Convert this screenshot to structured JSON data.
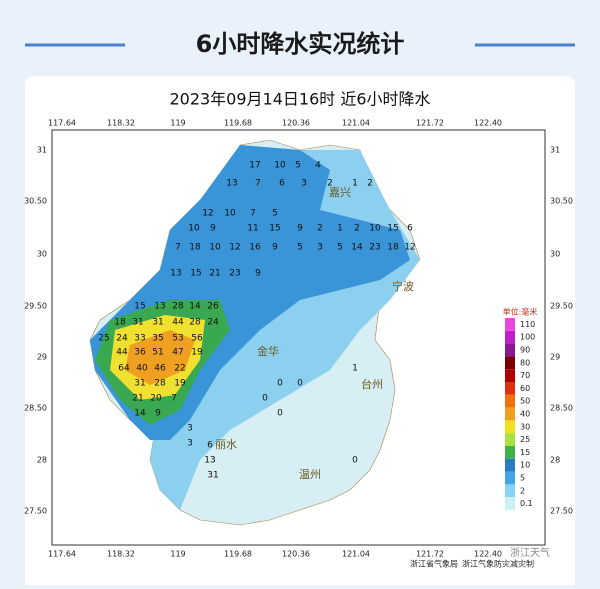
{
  "header": {
    "title": "6小时降水实况统计"
  },
  "map": {
    "title": "2023年09月14日16时  近6小时降水",
    "lon_ticks": [
      "117.64",
      "118.32",
      "119",
      "119.68",
      "120.36",
      "121.04",
      "121.72",
      "122.40"
    ],
    "lat_ticks": [
      "31",
      "30.50",
      "30",
      "29.50",
      "29",
      "28.50",
      "28",
      "27.50"
    ],
    "cities": [
      "嘉兴",
      "宁波",
      "金华",
      "台州",
      "丽水",
      "温州"
    ],
    "stations": [
      17,
      10,
      5,
      4,
      13,
      7,
      6,
      3,
      2,
      1,
      2,
      12,
      10,
      7,
      5,
      10,
      9,
      11,
      15,
      9,
      2,
      1,
      2,
      10,
      15,
      6,
      7,
      18,
      10,
      12,
      16,
      9,
      5,
      3,
      5,
      14,
      23,
      18,
      12,
      13,
      15,
      21,
      23,
      9,
      15,
      13,
      28,
      14,
      26,
      18,
      31,
      31,
      44,
      28,
      24,
      25,
      24,
      33,
      35,
      53,
      56,
      44,
      36,
      51,
      47,
      19,
      64,
      40,
      46,
      22,
      31,
      28,
      19,
      21,
      20,
      7,
      14,
      9,
      3,
      3,
      6,
      13,
      31,
      0,
      0,
      0,
      0,
      1,
      0
    ],
    "legend": {
      "unit": "单位:毫米",
      "levels": [
        "110",
        "100",
        "90",
        "80",
        "70",
        "60",
        "50",
        "40",
        "30",
        "25",
        "15",
        "10",
        "5",
        "2",
        "0.1"
      ],
      "colors": [
        "#e848e0",
        "#c020c8",
        "#8a1890",
        "#7a0000",
        "#b00000",
        "#e03010",
        "#f07010",
        "#f0a020",
        "#f0e020",
        "#a8e040",
        "#40b048",
        "#2a7cc0",
        "#46a4e4",
        "#88d4f4",
        "#c8f2f4"
      ]
    },
    "credits": [
      "浙江省气象局",
      "浙江气象防灾减灾制"
    ],
    "watermark": "浙江天气"
  }
}
